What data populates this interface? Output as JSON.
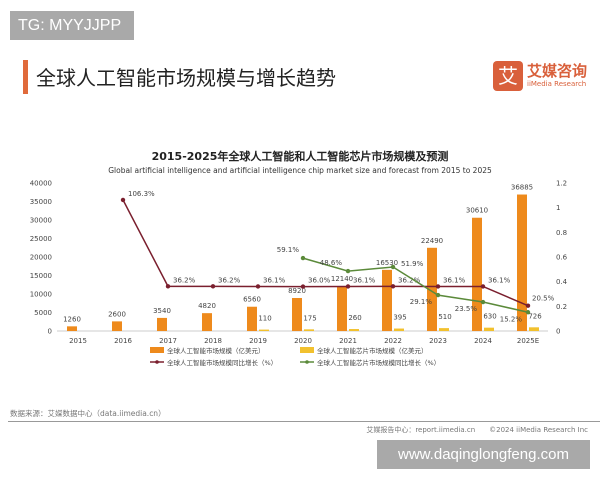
{
  "watermark_top": "TG: MYYJJPP",
  "heading": "全球人工智能市场规模与增长趋势",
  "logo": {
    "glyph": "艾",
    "name_cn": "艾媒咨询",
    "name_en": "iiMedia Research",
    "color": "#d9603b"
  },
  "source": "数据来源：艾媒数据中心（data.iimedia.cn）",
  "footer": "艾媒报告中心：report.iimedia.cn　　©2024 iiMedia Research Inc",
  "watermark_bottom": "www.daqinglongfeng.com",
  "chart_data": {
    "type": "bar",
    "title": "2015-2025年全球人工智能和人工智能芯片市场规模及预测",
    "subtitle": "Global artificial intelligence and artificial intelligence chip market size and forecast from 2015 to 2025",
    "categories": [
      "2015",
      "2016",
      "2017",
      "2018",
      "2019",
      "2020",
      "2021",
      "2022",
      "2023",
      "2024",
      "2025E"
    ],
    "ylim_left": [
      0,
      40000
    ],
    "yticks_left": [
      "0",
      "5000",
      "10000",
      "15000",
      "20000",
      "25000",
      "30000",
      "35000",
      "40000"
    ],
    "ylim_right": [
      0,
      1.2
    ],
    "yticks_right": [
      "0",
      "0.2",
      "0.4",
      "0.6",
      "0.8",
      "1",
      "1.2"
    ],
    "legend_position": "bottom",
    "series": [
      {
        "name": "全球人工智能市场规模（亿美元）",
        "kind": "bar",
        "axis": "left",
        "color": "#ee8a1c",
        "values": [
          1260,
          2600,
          3540,
          4820,
          6560,
          8920,
          12140,
          16530,
          22490,
          30610,
          36885
        ]
      },
      {
        "name": "全球人工智能芯片市场规模（亿美元）",
        "kind": "bar",
        "axis": "left",
        "color": "#f2c12e",
        "values": [
          null,
          null,
          null,
          null,
          110,
          175,
          260,
          395,
          510,
          630,
          726
        ]
      },
      {
        "name": "全球人工智能市场规模同比增长（%）",
        "kind": "line",
        "axis": "right",
        "color": "#7a1f2e",
        "values": [
          null,
          1.063,
          0.362,
          0.362,
          0.361,
          0.36,
          0.361,
          0.362,
          0.361,
          0.361,
          0.205
        ],
        "labels": [
          null,
          "106.3%",
          "36.2%",
          "36.2%",
          "36.1%",
          "36.0%",
          "36.1%",
          "36.2%",
          "36.1%",
          "36.1%",
          "20.5%"
        ]
      },
      {
        "name": "全球人工智能芯片市场规模同比增长（%）",
        "kind": "line",
        "axis": "right",
        "color": "#5b8a3a",
        "values": [
          null,
          null,
          null,
          null,
          null,
          0.591,
          0.486,
          0.519,
          0.291,
          0.235,
          0.152
        ],
        "labels": [
          null,
          null,
          null,
          null,
          null,
          "59.1%",
          "48.6%",
          "51.9%",
          "29.1%",
          "23.5%",
          "15.2%"
        ]
      }
    ]
  }
}
